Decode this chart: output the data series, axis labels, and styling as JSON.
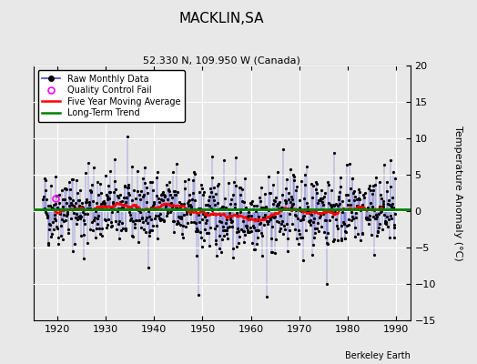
{
  "title": "MACKLIN,SA",
  "subtitle": "52.330 N, 109.950 W (Canada)",
  "ylabel": "Temperature Anomaly (°C)",
  "credit": "Berkeley Earth",
  "xlim": [
    1915,
    1993
  ],
  "ylim": [
    -15,
    20
  ],
  "yticks": [
    -15,
    -10,
    -5,
    0,
    5,
    10,
    15,
    20
  ],
  "xticks": [
    1920,
    1930,
    1940,
    1950,
    1960,
    1970,
    1980,
    1990
  ],
  "bg_color": "#e8e8e8",
  "grid_color": "white",
  "raw_line_color": "#4444cc",
  "raw_dot_color": "black",
  "ma_color": "red",
  "trend_color": "green",
  "qc_color": "magenta",
  "qc_x": 1919.5,
  "qc_y": 1.8,
  "long_term_trend_y": 0.3,
  "start_year": 1917.0,
  "end_year": 1990.0,
  "seed": 42,
  "title_fontsize": 11,
  "subtitle_fontsize": 8,
  "tick_fontsize": 8,
  "ylabel_fontsize": 8,
  "legend_fontsize": 7,
  "credit_fontsize": 7
}
